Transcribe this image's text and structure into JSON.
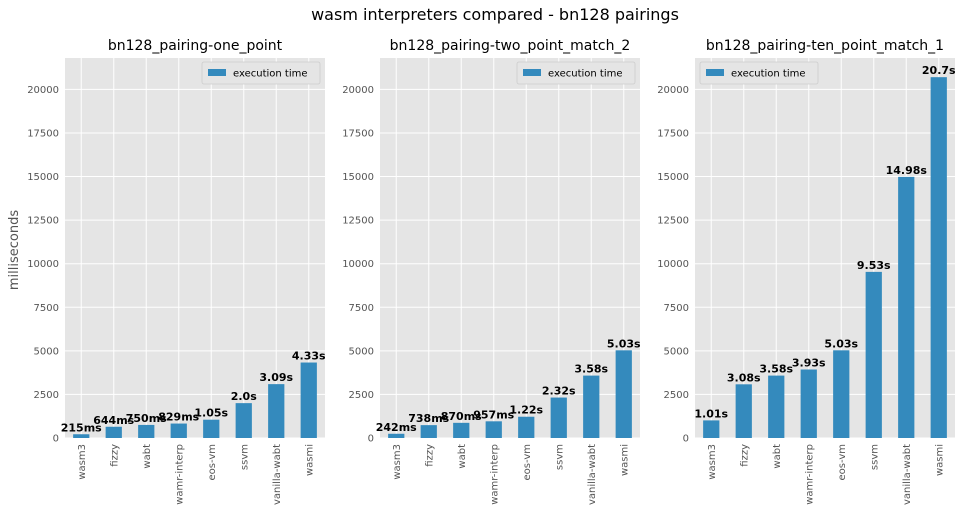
{
  "figure": {
    "suptitle": "wasm interpreters compared - bn128 pairings",
    "ylabel": "milliseconds"
  },
  "chart_data": [
    {
      "type": "bar",
      "title": "bn128_pairing-one_point",
      "categories": [
        "wasm3",
        "fizzy",
        "wabt",
        "wamr-interp",
        "eos-vm",
        "ssvm",
        "vanilla-wabt",
        "wasmi"
      ],
      "series": [
        {
          "name": "execution time",
          "values": [
            215,
            644,
            750,
            829,
            1050,
            2000,
            3090,
            4330
          ]
        }
      ],
      "data_labels": [
        "215ms",
        "644ms",
        "750ms",
        "829ms",
        "1.05s",
        "2.0s",
        "3.09s",
        "4.33s"
      ],
      "ylabel": "milliseconds",
      "ylim": [
        0,
        21800
      ],
      "yticks": [
        0,
        2500,
        5000,
        7500,
        10000,
        12500,
        15000,
        17500,
        20000
      ],
      "legend": "top-right",
      "grid": true,
      "bar_color": "#348ABD"
    },
    {
      "type": "bar",
      "title": "bn128_pairing-two_point_match_2",
      "categories": [
        "wasm3",
        "fizzy",
        "wabt",
        "wamr-interp",
        "eos-vm",
        "ssvm",
        "vanilla-wabt",
        "wasmi"
      ],
      "series": [
        {
          "name": "execution time",
          "values": [
            242,
            738,
            870,
            957,
            1220,
            2320,
            3580,
            5030
          ]
        }
      ],
      "data_labels": [
        "242ms",
        "738ms",
        "870ms",
        "957ms",
        "1.22s",
        "2.32s",
        "3.58s",
        "5.03s"
      ],
      "ylim": [
        0,
        21800
      ],
      "yticks": [
        0,
        2500,
        5000,
        7500,
        10000,
        12500,
        15000,
        17500,
        20000
      ],
      "legend": "top-right",
      "grid": true,
      "bar_color": "#348ABD"
    },
    {
      "type": "bar",
      "title": "bn128_pairing-ten_point_match_1",
      "categories": [
        "wasm3",
        "fizzy",
        "wabt",
        "wamr-interp",
        "eos-vm",
        "ssvm",
        "vanilla-wabt",
        "wasmi"
      ],
      "series": [
        {
          "name": "execution time",
          "values": [
            1010,
            3080,
            3580,
            3930,
            5030,
            9530,
            14980,
            20700
          ]
        }
      ],
      "data_labels": [
        "1.01s",
        "3.08s",
        "3.58s",
        "3.93s",
        "5.03s",
        "9.53s",
        "14.98s",
        "20.7s"
      ],
      "ylim": [
        0,
        21800
      ],
      "yticks": [
        0,
        2500,
        5000,
        7500,
        10000,
        12500,
        15000,
        17500,
        20000
      ],
      "legend": "top-left",
      "grid": true,
      "bar_color": "#348ABD"
    }
  ]
}
